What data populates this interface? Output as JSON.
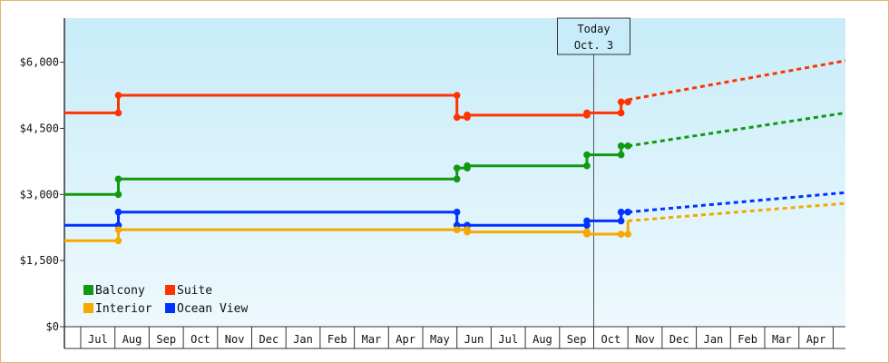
{
  "chart_data": {
    "type": "line",
    "title": "",
    "xlabel": "",
    "ylabel": "",
    "ylim": [
      0,
      7000
    ],
    "y_ticks": [
      0,
      1500,
      3000,
      4500,
      6000
    ],
    "y_tick_labels": [
      "$0",
      "$1,500",
      "$3,000",
      "$4,500",
      "$6,000"
    ],
    "x_tick_labels": [
      "Jul",
      "Aug",
      "Sep",
      "Oct",
      "Nov",
      "Dec",
      "Jan",
      "Feb",
      "Mar",
      "Apr",
      "May",
      "Jun",
      "Jul",
      "Aug",
      "Sep",
      "Oct",
      "Nov",
      "Dec",
      "Jan",
      "Feb",
      "Mar",
      "Apr"
    ],
    "grid": false,
    "legend_position": "bottom-left",
    "today_marker": {
      "line1": "Today",
      "line2": "Oct. 3",
      "x": 15.0
    },
    "series": [
      {
        "name": "Suite",
        "color": "#ff3300",
        "points": [
          [
            -0.6,
            4850
          ],
          [
            1.1,
            4850
          ],
          [
            1.1,
            5250
          ],
          [
            11.0,
            5250
          ],
          [
            11.0,
            4750
          ],
          [
            11.3,
            4750
          ],
          [
            11.3,
            4800
          ],
          [
            14.8,
            4800
          ],
          [
            14.8,
            4850
          ],
          [
            15.8,
            4850
          ],
          [
            15.8,
            5100
          ],
          [
            16.0,
            5100
          ],
          [
            16.0,
            5150
          ]
        ],
        "forecast": [
          [
            16.0,
            5150
          ],
          [
            23.2,
            6150
          ]
        ]
      },
      {
        "name": "Balcony",
        "color": "#119911",
        "points": [
          [
            -0.6,
            3000
          ],
          [
            1.1,
            3000
          ],
          [
            1.1,
            3350
          ],
          [
            11.0,
            3350
          ],
          [
            11.0,
            3600
          ],
          [
            11.3,
            3600
          ],
          [
            11.3,
            3650
          ],
          [
            14.8,
            3650
          ],
          [
            14.8,
            3900
          ],
          [
            15.8,
            3900
          ],
          [
            15.8,
            4100
          ],
          [
            16.0,
            4100
          ],
          [
            16.0,
            4100
          ]
        ],
        "forecast": [
          [
            16.0,
            4100
          ],
          [
            23.2,
            4950
          ]
        ]
      },
      {
        "name": "Ocean View",
        "color": "#0033ff",
        "points": [
          [
            -0.6,
            2300
          ],
          [
            1.1,
            2300
          ],
          [
            1.1,
            2600
          ],
          [
            11.0,
            2600
          ],
          [
            11.0,
            2300
          ],
          [
            11.3,
            2300
          ],
          [
            11.3,
            2300
          ],
          [
            14.8,
            2300
          ],
          [
            14.8,
            2400
          ],
          [
            15.8,
            2400
          ],
          [
            15.8,
            2600
          ],
          [
            16.0,
            2600
          ],
          [
            16.0,
            2600
          ]
        ],
        "forecast": [
          [
            16.0,
            2600
          ],
          [
            23.2,
            3100
          ]
        ]
      },
      {
        "name": "Interior",
        "color": "#f5a800",
        "points": [
          [
            -0.6,
            1950
          ],
          [
            1.1,
            1950
          ],
          [
            1.1,
            2200
          ],
          [
            11.0,
            2200
          ],
          [
            11.0,
            2200
          ],
          [
            11.3,
            2200
          ],
          [
            11.3,
            2150
          ],
          [
            14.8,
            2150
          ],
          [
            14.8,
            2100
          ],
          [
            15.8,
            2100
          ],
          [
            15.8,
            2100
          ],
          [
            16.0,
            2100
          ],
          [
            16.0,
            2400
          ]
        ],
        "forecast": [
          [
            16.0,
            2400
          ],
          [
            23.2,
            2850
          ]
        ]
      }
    ],
    "legend": [
      {
        "name": "Balcony",
        "color": "#119911"
      },
      {
        "name": "Suite",
        "color": "#ff3300"
      },
      {
        "name": "Interior",
        "color": "#f5a800"
      },
      {
        "name": "Ocean View",
        "color": "#0033ff"
      }
    ]
  }
}
